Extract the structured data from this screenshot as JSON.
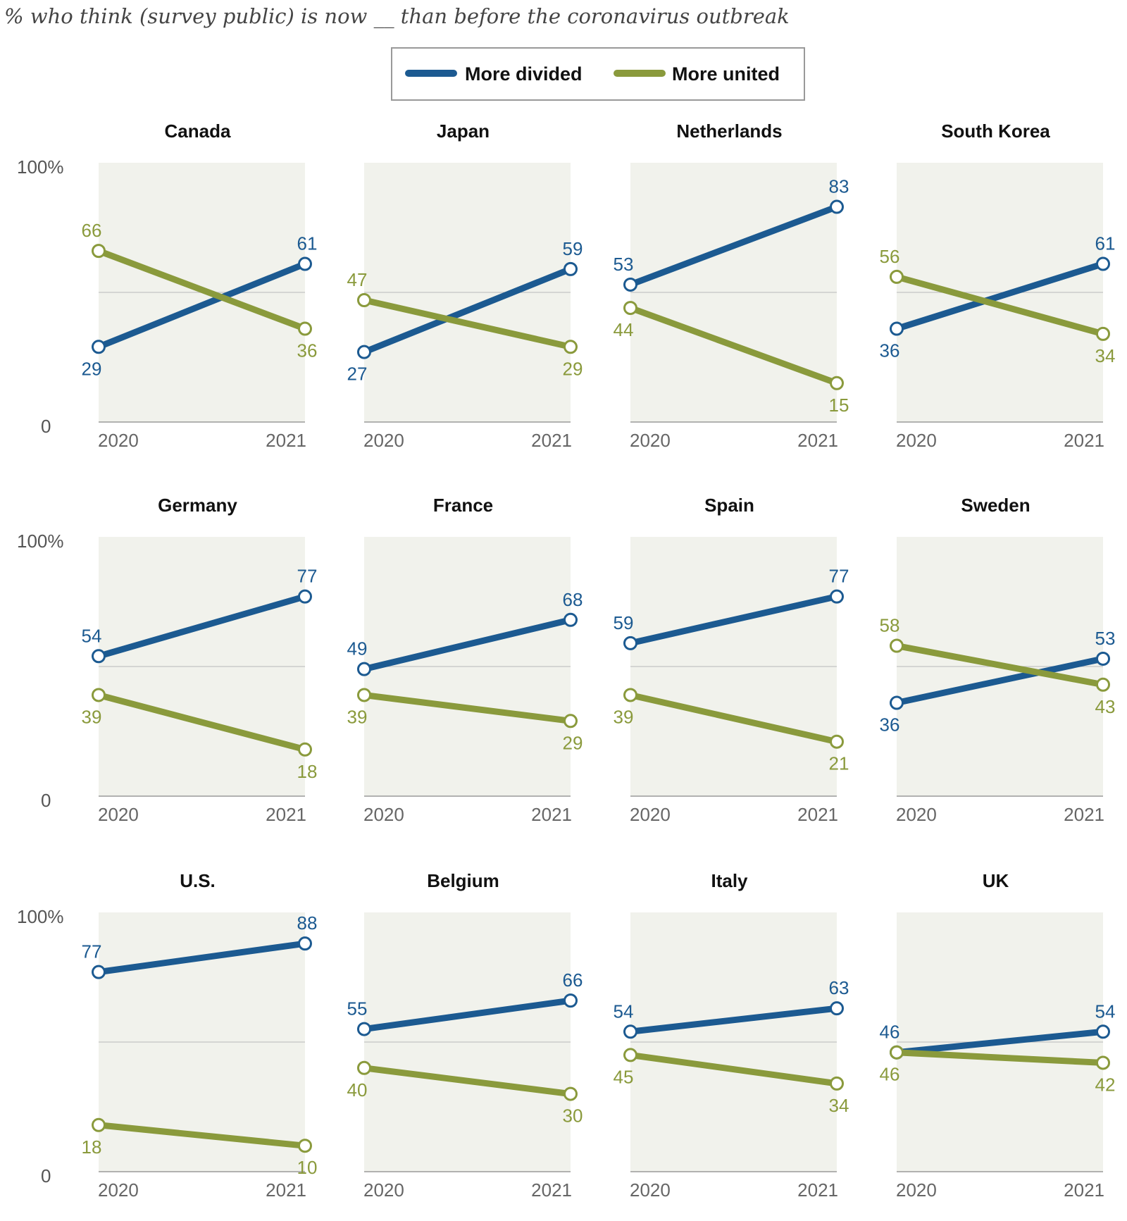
{
  "colors": {
    "divided": "#1c5a91",
    "united": "#8a9a3c",
    "panel_bg": "#f1f2ec"
  },
  "chart_data": {
    "type": "line",
    "subtitle": "% who think (survey public) is now __ than before the coronavirus outbreak",
    "legend": {
      "placement": "top-center",
      "entries": [
        "More divided",
        "More united"
      ]
    },
    "ylim": [
      0,
      100
    ],
    "y_ticks": [
      "100%",
      "0"
    ],
    "x": [
      "2020",
      "2021"
    ],
    "grid": "midline at 50",
    "panels": [
      {
        "title": "Canada",
        "series": [
          {
            "name": "More divided",
            "values": [
              29,
              61
            ]
          },
          {
            "name": "More united",
            "values": [
              66,
              36
            ]
          }
        ]
      },
      {
        "title": "Japan",
        "series": [
          {
            "name": "More divided",
            "values": [
              27,
              59
            ]
          },
          {
            "name": "More united",
            "values": [
              47,
              29
            ]
          }
        ]
      },
      {
        "title": "Netherlands",
        "series": [
          {
            "name": "More divided",
            "values": [
              53,
              83
            ]
          },
          {
            "name": "More united",
            "values": [
              44,
              15
            ]
          }
        ]
      },
      {
        "title": "South Korea",
        "series": [
          {
            "name": "More divided",
            "values": [
              36,
              61
            ]
          },
          {
            "name": "More united",
            "values": [
              56,
              34
            ]
          }
        ]
      },
      {
        "title": "Germany",
        "series": [
          {
            "name": "More divided",
            "values": [
              54,
              77
            ]
          },
          {
            "name": "More united",
            "values": [
              39,
              18
            ]
          }
        ]
      },
      {
        "title": "France",
        "series": [
          {
            "name": "More divided",
            "values": [
              49,
              68
            ]
          },
          {
            "name": "More united",
            "values": [
              39,
              29
            ]
          }
        ]
      },
      {
        "title": "Spain",
        "series": [
          {
            "name": "More divided",
            "values": [
              59,
              77
            ]
          },
          {
            "name": "More united",
            "values": [
              39,
              21
            ]
          }
        ]
      },
      {
        "title": "Sweden",
        "series": [
          {
            "name": "More divided",
            "values": [
              36,
              53
            ]
          },
          {
            "name": "More united",
            "values": [
              58,
              43
            ]
          }
        ]
      },
      {
        "title": "U.S.",
        "series": [
          {
            "name": "More divided",
            "values": [
              77,
              88
            ]
          },
          {
            "name": "More united",
            "values": [
              18,
              10
            ]
          }
        ]
      },
      {
        "title": "Belgium",
        "series": [
          {
            "name": "More divided",
            "values": [
              55,
              66
            ]
          },
          {
            "name": "More united",
            "values": [
              40,
              30
            ]
          }
        ]
      },
      {
        "title": "Italy",
        "series": [
          {
            "name": "More divided",
            "values": [
              54,
              63
            ]
          },
          {
            "name": "More united",
            "values": [
              45,
              34
            ]
          }
        ]
      },
      {
        "title": "UK",
        "series": [
          {
            "name": "More divided",
            "values": [
              46,
              54
            ]
          },
          {
            "name": "More united",
            "values": [
              46,
              42
            ]
          }
        ]
      }
    ]
  }
}
